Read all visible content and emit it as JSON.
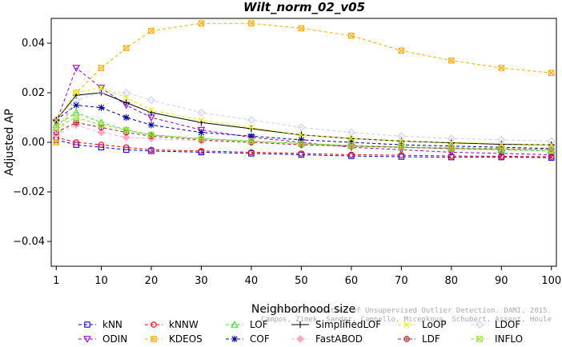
{
  "chart_data": {
    "type": "line",
    "title": "Wilt_norm_02_v05",
    "xlabel": "Neighborhood size",
    "ylabel": "Adjusted AP",
    "xlim": [
      0,
      101
    ],
    "ylim": [
      -0.05,
      0.05
    ],
    "x_ticks": [
      1,
      10,
      20,
      30,
      40,
      50,
      60,
      70,
      80,
      90,
      100
    ],
    "y_ticks": [
      -0.04,
      -0.02,
      0.0,
      0.02,
      0.04
    ],
    "y_tick_labels": [
      "−0.04",
      "−0.02",
      "0.00",
      "0.02",
      "0.04"
    ],
    "grid": false,
    "legend_position": "bottom",
    "watermark": "Campos, Zimek, Sander, Campello, Micenkova, Schubert, Assent, Houle\nOn the Evaluation of Unsupervised Outlier Detection. DAMI, 2015.",
    "x": [
      1,
      5,
      10,
      15,
      20,
      30,
      40,
      50,
      60,
      70,
      80,
      90,
      100
    ],
    "series": [
      {
        "name": "kNN",
        "color": "#0000ff",
        "marker": "square",
        "dash": "4,3",
        "values": [
          0.001,
          -0.001,
          -0.002,
          -0.003,
          -0.0035,
          -0.004,
          -0.0045,
          -0.005,
          -0.0055,
          -0.0058,
          -0.006,
          -0.006,
          -0.0062
        ]
      },
      {
        "name": "ODIN",
        "color": "#9900cc",
        "marker": "triangle-down",
        "dash": "4,3",
        "values": [
          0.008,
          0.03,
          0.022,
          0.015,
          0.01,
          0.005,
          0.002,
          0.0,
          -0.002,
          -0.003,
          -0.004,
          -0.0045,
          -0.005
        ]
      },
      {
        "name": "kNNW",
        "color": "#ff0000",
        "marker": "circle",
        "dash": "4,3",
        "values": [
          0.002,
          0.0,
          -0.001,
          -0.002,
          -0.003,
          -0.0035,
          -0.004,
          -0.0045,
          -0.005,
          -0.0052,
          -0.0055,
          -0.0056,
          -0.0058
        ]
      },
      {
        "name": "KDEOS",
        "color": "#ffaa00",
        "marker": "square-x",
        "dash": "4,3",
        "values": [
          0.0,
          0.02,
          0.03,
          0.038,
          0.045,
          0.048,
          0.048,
          0.046,
          0.043,
          0.037,
          0.033,
          0.03,
          0.028
        ]
      },
      {
        "name": "LOF",
        "color": "#33dd33",
        "marker": "triangle",
        "dash": "4,3",
        "values": [
          0.007,
          0.012,
          0.008,
          0.005,
          0.003,
          0.0015,
          0.0005,
          -0.0005,
          -0.0015,
          -0.002,
          -0.0025,
          -0.003,
          -0.0035
        ]
      },
      {
        "name": "COF",
        "color": "#000099",
        "marker": "star",
        "dash": "4,3",
        "values": [
          0.009,
          0.015,
          0.014,
          0.01,
          0.007,
          0.004,
          0.0025,
          0.001,
          0.0,
          -0.001,
          -0.0015,
          -0.002,
          -0.0025
        ]
      },
      {
        "name": "SimplifiedLOF",
        "color": "#000000",
        "marker": "plus",
        "dash": "none",
        "values": [
          0.009,
          0.019,
          0.02,
          0.016,
          0.012,
          0.008,
          0.0055,
          0.003,
          0.0015,
          0.0005,
          -0.0002,
          -0.0008,
          -0.001
        ]
      },
      {
        "name": "FastABOD",
        "color": "#ffaacc",
        "marker": "diamond-filled",
        "dash": "4,3",
        "values": [
          0.003,
          0.007,
          0.004,
          0.002,
          0.0015,
          0.0005,
          0.0,
          -0.001,
          -0.0015,
          -0.002,
          -0.0022,
          -0.0025,
          -0.0028
        ]
      },
      {
        "name": "LoOP",
        "color": "#eeee00",
        "marker": "x",
        "dash": "4,3",
        "values": [
          0.009,
          0.02,
          0.022,
          0.018,
          0.013,
          0.009,
          0.006,
          0.003,
          0.0015,
          0.0005,
          0.0,
          -0.0005,
          -0.001
        ]
      },
      {
        "name": "LDF",
        "color": "#aa2222",
        "marker": "circle-plus",
        "dash": "4,3",
        "values": [
          0.004,
          0.008,
          0.006,
          0.004,
          0.0025,
          0.001,
          0.0,
          -0.001,
          -0.0015,
          -0.002,
          -0.0025,
          -0.0028,
          -0.003
        ]
      },
      {
        "name": "LDOF",
        "color": "#ccccff",
        "marker": "diamond",
        "dash": "4,3",
        "values": [
          0.005,
          0.017,
          0.02,
          0.02,
          0.017,
          0.012,
          0.009,
          0.006,
          0.004,
          0.0025,
          0.0015,
          0.001,
          0.0005
        ]
      },
      {
        "name": "INFLO",
        "color": "#99dd33",
        "marker": "square-x",
        "dash": "4,3",
        "values": [
          0.006,
          0.01,
          0.007,
          0.005,
          0.003,
          0.0015,
          0.0005,
          -0.0005,
          -0.0012,
          -0.0018,
          -0.0022,
          -0.0025,
          -0.003
        ]
      }
    ],
    "legend_layout": [
      [
        "kNN",
        "kNNW",
        "LOF",
        "SimplifiedLOF",
        "LoOP",
        "LDOF"
      ],
      [
        "ODIN",
        "KDEOS",
        "COF",
        "FastABOD",
        "LDF",
        "INFLO"
      ]
    ]
  }
}
